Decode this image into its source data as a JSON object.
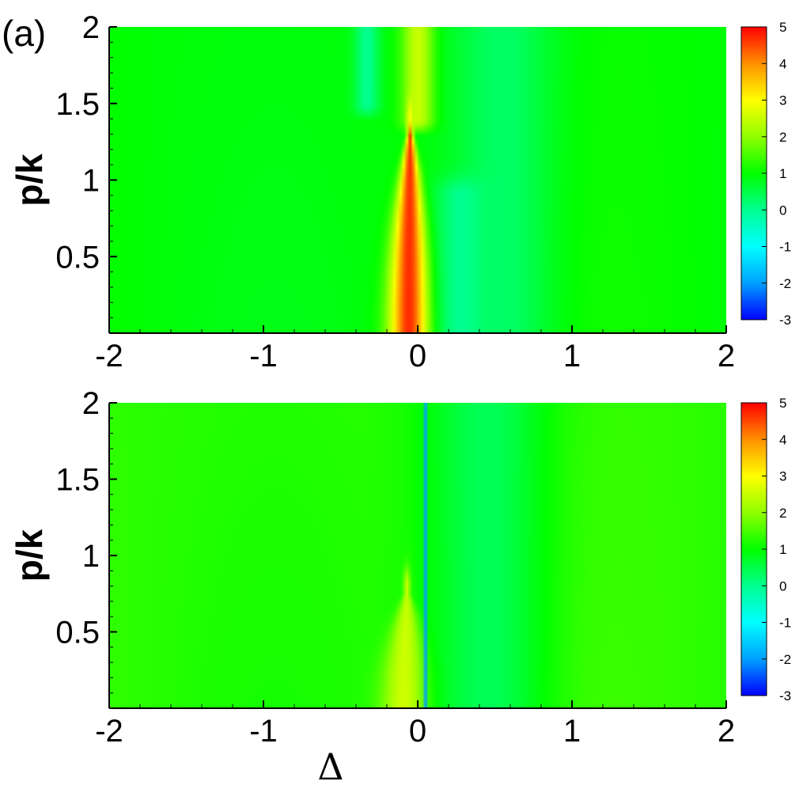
{
  "chart_data": [
    {
      "type": "heatmap",
      "panel_label": "(a)",
      "xlabel": "",
      "ylabel": "p/k",
      "xlim": [
        -2,
        2
      ],
      "ylim": [
        0,
        2
      ],
      "x_ticks": [
        "-2",
        "-1",
        "0",
        "1",
        "2"
      ],
      "y_ticks": [
        "0.5",
        "1",
        "1.5",
        "2"
      ],
      "colorbar": {
        "range": [
          -3,
          5
        ],
        "ticks": [
          "5",
          "4",
          "3",
          "2",
          "1",
          "0",
          "-1",
          "-2",
          "-3"
        ],
        "colormap": [
          "#0000ff",
          "#00a0ff",
          "#00ffff",
          "#00ff90",
          "#00ff00",
          "#90ff00",
          "#ffff00",
          "#ff9000",
          "#ff0000"
        ]
      },
      "background_value": 1.0,
      "features": [
        {
          "kind": "peak",
          "x_center": -0.05,
          "x_width": 0.13,
          "y_top": 1.4,
          "value": 5
        },
        {
          "kind": "dip",
          "x_center": 0.33,
          "x_width": 0.18,
          "y_top": 0.9,
          "value": -0.5
        },
        {
          "kind": "dip",
          "x_center": 0.55,
          "x_width": 0.35,
          "y_top": 2.0,
          "value": 0.3
        },
        {
          "kind": "dip",
          "x_center": -0.33,
          "x_width": 0.08,
          "y_from": 1.5,
          "y_top": 2.0,
          "value": 0.0
        },
        {
          "kind": "band",
          "x_center": 0.0,
          "x_width": 0.1,
          "y_from": 1.4,
          "y_top": 2.0,
          "value": 2.5
        }
      ]
    },
    {
      "type": "heatmap",
      "panel_label": "",
      "xlabel": "Δ",
      "ylabel": "p/k",
      "xlim": [
        -2,
        2
      ],
      "ylim": [
        0,
        2
      ],
      "x_ticks": [
        "-2",
        "-1",
        "0",
        "1",
        "2"
      ],
      "y_ticks": [
        "0.5",
        "1",
        "1.5",
        "2"
      ],
      "colorbar": {
        "range": [
          -3,
          5
        ],
        "ticks": [
          "5",
          "4",
          "3",
          "2",
          "1",
          "0",
          "-1",
          "-2",
          "-3"
        ],
        "colormap": [
          "#0000ff",
          "#00a0ff",
          "#00ffff",
          "#00ff90",
          "#00ff00",
          "#90ff00",
          "#ffff00",
          "#ff9000",
          "#ff0000"
        ]
      },
      "background_value": 1.3,
      "features": [
        {
          "kind": "peak",
          "x_center": -0.07,
          "x_width": 0.15,
          "y_top": 0.8,
          "value": 3
        },
        {
          "kind": "dip",
          "x_center": 0.45,
          "x_width": 0.4,
          "y_top": 2.0,
          "value": 0.4
        },
        {
          "kind": "line",
          "x_center": 0.05,
          "y_from": 0.0,
          "y_top": 2.0,
          "value": -2
        }
      ]
    }
  ]
}
